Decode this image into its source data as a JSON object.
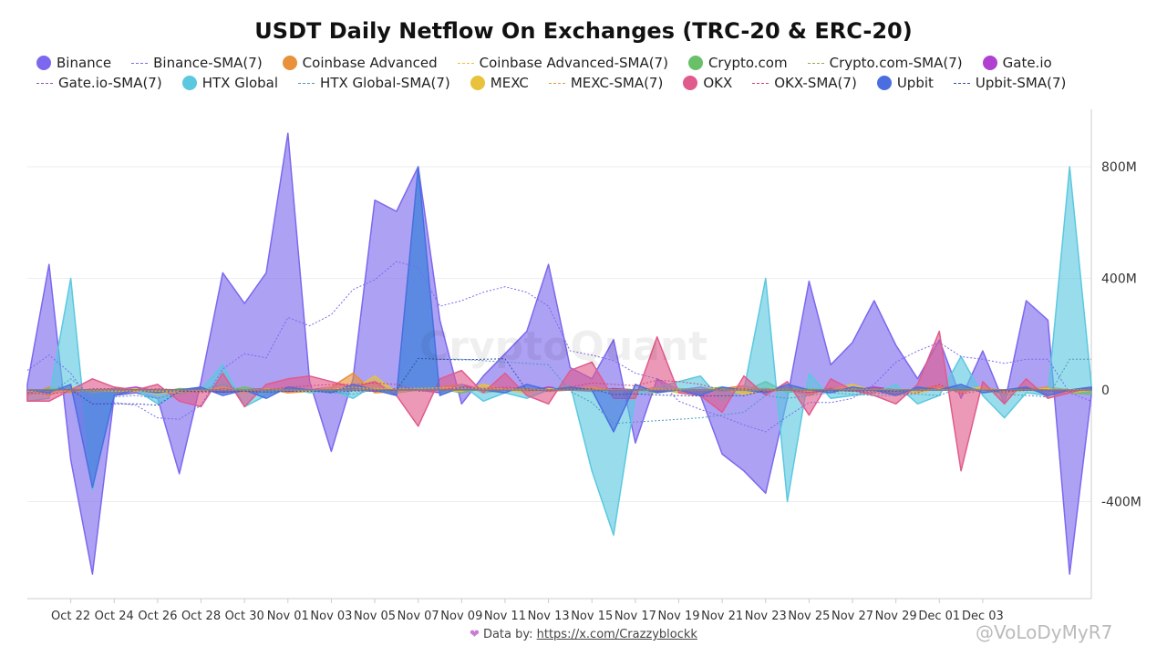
{
  "chart_data": {
    "type": "area",
    "title": "USDT Daily Netflow On Exchanges (TRC-20 & ERC-20)",
    "x_ticks": [
      "Oct 22",
      "Oct 24",
      "Oct 26",
      "Oct 28",
      "Oct 30",
      "Nov 01",
      "Nov 03",
      "Nov 05",
      "Nov 07",
      "Nov 09",
      "Nov 11",
      "Nov 13",
      "Nov 15",
      "Nov 17",
      "Nov 19",
      "Nov 21",
      "Nov 23",
      "Nov 25",
      "Nov 27",
      "Nov 29",
      "Dec 01",
      "Dec 03"
    ],
    "y_ticks": [
      {
        "value": 800,
        "label": "800M"
      },
      {
        "value": 400,
        "label": "400M"
      },
      {
        "value": 0,
        "label": "0"
      },
      {
        "value": -400,
        "label": "-400M"
      }
    ],
    "y_unit": "M",
    "ylim": [
      -750,
      1000
    ],
    "grid": true,
    "legend_position": "top",
    "x_start_day": "Oct 20",
    "series": [
      {
        "name": "Binance",
        "color": "#7b68ee",
        "values": [
          20,
          450,
          -250,
          -660,
          -20,
          -10,
          -30,
          -300,
          30,
          420,
          310,
          420,
          920,
          30,
          -220,
          40,
          680,
          640,
          800,
          250,
          -50,
          50,
          130,
          210,
          450,
          80,
          40,
          180,
          -190,
          40,
          0,
          -20,
          -230,
          -290,
          -370,
          -30,
          390,
          90,
          170,
          320,
          160,
          40,
          180,
          -30,
          140,
          -50,
          320,
          250,
          -660,
          -20
        ]
      },
      {
        "name": "Binance-SMA(7)",
        "color": "#7b68ee",
        "line": true,
        "values": [
          70,
          125,
          60,
          -50,
          -45,
          -55,
          -100,
          -105,
          -55,
          75,
          130,
          115,
          260,
          230,
          270,
          360,
          395,
          460,
          440,
          300,
          320,
          350,
          370,
          350,
          300,
          140,
          125,
          105,
          60,
          40,
          -40,
          -70,
          -95,
          -125,
          -150,
          -95,
          -45,
          -45,
          -30,
          20,
          100,
          140,
          170,
          120,
          110,
          95,
          110,
          110,
          -10,
          -40
        ]
      },
      {
        "name": "Coinbase Advanced",
        "color": "#e8903a",
        "values": [
          -20,
          10,
          -10,
          0,
          -10,
          -5,
          -10,
          -15,
          0,
          10,
          0,
          5,
          -10,
          -5,
          10,
          60,
          -10,
          -5,
          5,
          10,
          20,
          -10,
          0,
          5,
          -5,
          0,
          10,
          0,
          -5,
          10,
          5,
          -10,
          5,
          15,
          -5,
          0,
          -20,
          10,
          -5,
          10,
          -20,
          5,
          15,
          -10,
          10,
          -5,
          0,
          10,
          0,
          5
        ]
      },
      {
        "name": "Coinbase Advanced-SMA(7)",
        "color": "#e8c23a",
        "line": true,
        "values": [
          -5,
          0,
          -5,
          0,
          -5,
          -3,
          -5,
          -8,
          -2,
          2,
          0,
          3,
          0,
          0,
          3,
          10,
          5,
          4,
          6,
          8,
          9,
          2,
          2,
          3,
          0,
          0,
          2,
          1,
          0,
          2,
          2,
          -1,
          1,
          3,
          1,
          0,
          -3,
          0,
          -1,
          1,
          -2,
          0,
          2,
          0,
          1,
          0,
          0,
          1,
          1,
          2
        ]
      },
      {
        "name": "Crypto.com",
        "color": "#6abf69",
        "values": [
          -10,
          5,
          0,
          -5,
          5,
          0,
          -10,
          5,
          0,
          -5,
          10,
          -5,
          5,
          0,
          -5,
          10,
          5,
          -10,
          0,
          5,
          -10,
          5,
          0,
          -5,
          10,
          0,
          -5,
          5,
          0,
          -10,
          5,
          0,
          10,
          -5,
          30,
          -10,
          5,
          0,
          -5,
          10,
          0,
          -5,
          5,
          10,
          0,
          -5,
          10,
          0,
          -10,
          -15
        ]
      },
      {
        "name": "Crypto.com-SMA(7)",
        "color": "#a0a050",
        "line": true,
        "values": [
          -3,
          -1,
          0,
          -2,
          0,
          0,
          -2,
          0,
          0,
          -1,
          1,
          0,
          1,
          0,
          0,
          2,
          2,
          0,
          0,
          1,
          -1,
          0,
          0,
          -1,
          1,
          0,
          0,
          1,
          0,
          -1,
          0,
          0,
          2,
          0,
          4,
          2,
          2,
          0,
          0,
          2,
          1,
          0,
          1,
          2,
          1,
          0,
          2,
          1,
          -1,
          -2
        ]
      },
      {
        "name": "Gate.io",
        "color": "#b040d0",
        "values": [
          -10,
          0,
          5,
          -5,
          0,
          10,
          -5,
          0,
          5,
          -10,
          0,
          5,
          -5,
          0,
          10,
          0,
          -5,
          5,
          0,
          -10,
          20,
          0,
          5,
          -5,
          10,
          0,
          -5,
          5,
          0,
          -5,
          0,
          10,
          -5,
          0,
          5,
          0,
          -10,
          5,
          0,
          10,
          0,
          -5,
          5,
          0,
          10,
          -10,
          0,
          -5,
          0,
          5
        ]
      },
      {
        "name": "Gate.io-SMA(7)",
        "color": "#9050b0",
        "line": true,
        "values": [
          -2,
          -1,
          0,
          -1,
          0,
          1,
          0,
          0,
          1,
          -1,
          0,
          1,
          0,
          0,
          2,
          1,
          0,
          1,
          0,
          -1,
          2,
          1,
          1,
          0,
          1,
          0,
          0,
          1,
          0,
          -1,
          0,
          1,
          0,
          0,
          1,
          0,
          -1,
          0,
          0,
          1,
          0,
          -1,
          1,
          0,
          1,
          -1,
          0,
          -1,
          0,
          1
        ]
      },
      {
        "name": "HTX Global",
        "color": "#5bc8e0",
        "values": [
          -40,
          -30,
          400,
          -360,
          10,
          0,
          -50,
          -10,
          0,
          90,
          -60,
          -20,
          10,
          -10,
          0,
          -30,
          20,
          -20,
          780,
          -20,
          20,
          -40,
          -10,
          -30,
          0,
          20,
          -290,
          -520,
          -20,
          10,
          30,
          50,
          -40,
          0,
          400,
          -400,
          60,
          -30,
          -20,
          -10,
          20,
          -50,
          -20,
          120,
          -20,
          -100,
          -10,
          -20,
          800,
          20
        ]
      },
      {
        "name": "HTX Global-SMA(7)",
        "color": "#4a9ab8",
        "line": true,
        "values": [
          -10,
          -15,
          40,
          -20,
          -25,
          -20,
          -30,
          -10,
          0,
          20,
          -5,
          -10,
          0,
          0,
          -10,
          -15,
          0,
          -10,
          100,
          110,
          110,
          105,
          100,
          95,
          90,
          -5,
          -45,
          -120,
          -115,
          -110,
          -105,
          -100,
          -90,
          -80,
          -20,
          -30,
          -20,
          -10,
          -15,
          -20,
          -20,
          -15,
          -20,
          10,
          0,
          -15,
          -20,
          -25,
          110,
          110
        ]
      },
      {
        "name": "MEXC",
        "color": "#e8c23a",
        "values": [
          0,
          -20,
          10,
          -10,
          0,
          5,
          -15,
          0,
          -5,
          10,
          -10,
          5,
          0,
          -5,
          10,
          0,
          50,
          -10,
          5,
          0,
          -5,
          20,
          0,
          -10,
          5,
          0,
          10,
          -5,
          0,
          5,
          -10,
          0,
          5,
          -15,
          0,
          10,
          -5,
          0,
          20,
          -5,
          0,
          -10,
          5,
          0,
          10,
          -10,
          0,
          5,
          -10,
          0
        ]
      },
      {
        "name": "MEXC-SMA(7)",
        "color": "#e89a3a",
        "line": true,
        "values": [
          0,
          -3,
          0,
          -2,
          -2,
          -1,
          -4,
          -2,
          -2,
          0,
          -2,
          -1,
          -1,
          -1,
          1,
          1,
          7,
          5,
          6,
          6,
          5,
          8,
          4,
          1,
          2,
          1,
          3,
          1,
          0,
          1,
          -1,
          -1,
          0,
          -2,
          -2,
          -1,
          -1,
          -1,
          3,
          2,
          2,
          0,
          1,
          0,
          2,
          0,
          0,
          1,
          -1,
          -1
        ]
      },
      {
        "name": "OKX",
        "color": "#e05a8c",
        "values": [
          -40,
          -40,
          0,
          40,
          10,
          0,
          20,
          -40,
          -60,
          60,
          -60,
          20,
          40,
          50,
          30,
          10,
          30,
          -20,
          -130,
          40,
          70,
          -10,
          60,
          -20,
          -50,
          70,
          100,
          -30,
          -30,
          190,
          -10,
          -20,
          -80,
          50,
          -20,
          30,
          -90,
          40,
          0,
          -20,
          -50,
          20,
          210,
          -290,
          30,
          -50,
          40,
          -30,
          -10,
          10
        ]
      },
      {
        "name": "OKX-SMA(7)",
        "color": "#d04070",
        "line": true,
        "values": [
          -10,
          -15,
          -5,
          5,
          5,
          0,
          5,
          0,
          -10,
          5,
          -5,
          0,
          10,
          15,
          20,
          20,
          25,
          20,
          -5,
          0,
          10,
          5,
          10,
          5,
          -5,
          10,
          25,
          20,
          15,
          35,
          30,
          20,
          0,
          5,
          -5,
          0,
          -10,
          0,
          -5,
          -10,
          -15,
          -10,
          20,
          -15,
          0,
          -10,
          5,
          0,
          -5,
          0
        ]
      },
      {
        "name": "Upbit",
        "color": "#4a6ee0",
        "values": [
          0,
          -10,
          20,
          -350,
          -20,
          0,
          -10,
          0,
          10,
          -20,
          0,
          -30,
          10,
          0,
          -10,
          20,
          0,
          -20,
          800,
          -20,
          10,
          0,
          -10,
          20,
          0,
          10,
          0,
          -150,
          20,
          -10,
          0,
          -20,
          10,
          0,
          -10,
          20,
          0,
          -10,
          10,
          0,
          -20,
          10,
          0,
          20,
          -10,
          0,
          10,
          -20,
          0,
          10
        ]
      },
      {
        "name": "Upbit-SMA(7)",
        "color": "#3a4ab0",
        "line": true,
        "values": [
          0,
          -2,
          2,
          -50,
          -50,
          -50,
          -55,
          -5,
          -5,
          -8,
          -5,
          -8,
          -5,
          -5,
          -8,
          -4,
          -3,
          -1,
          113,
          110,
          108,
          110,
          112,
          -2,
          -1,
          2,
          4,
          -17,
          -14,
          -18,
          -20,
          -22,
          -21,
          -21,
          0,
          -1,
          -1,
          -3,
          -3,
          -3,
          -4,
          0,
          -1,
          1,
          0,
          -3,
          -2,
          0,
          -1,
          1
        ]
      }
    ]
  },
  "footer": {
    "label": "Data by: ",
    "link": "https://x.com/Crazzyblockk"
  },
  "watermark": "CryptoQuant",
  "author_watermark": "@VoLoDyMyR7"
}
